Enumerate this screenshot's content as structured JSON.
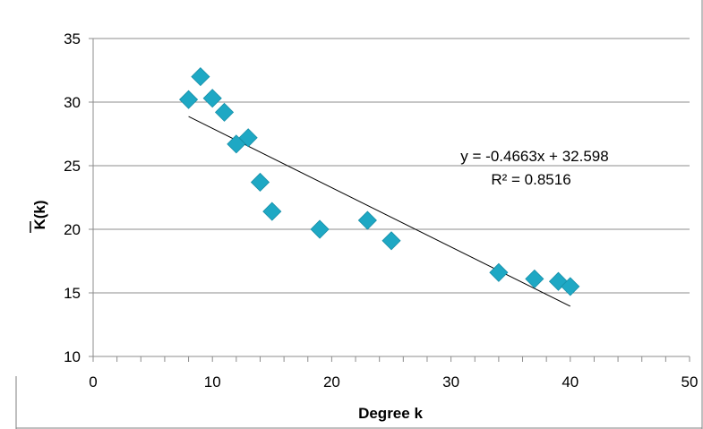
{
  "chart_data": {
    "type": "scatter",
    "xlabel": "Degree k",
    "ylabel": "K(k)",
    "ylabel_overline": true,
    "xlim": [
      0,
      50
    ],
    "ylim": [
      10,
      35
    ],
    "x_ticks": [
      0,
      10,
      20,
      30,
      40,
      50
    ],
    "y_ticks": [
      10,
      15,
      20,
      25,
      30,
      35
    ],
    "grid": "horizontal",
    "legend": "none",
    "marker": "diamond",
    "marker_color": "#1ea8c4",
    "series": [
      {
        "x": [
          8,
          9,
          10,
          11,
          12,
          13,
          14,
          15,
          19,
          23,
          25,
          34,
          37,
          39,
          40
        ],
        "y": [
          30.2,
          32.0,
          30.3,
          29.2,
          26.7,
          27.2,
          23.7,
          21.4,
          20.0,
          20.7,
          19.1,
          16.6,
          16.1,
          15.9,
          15.5
        ]
      }
    ],
    "trendline": {
      "slope": -0.4663,
      "intercept": 32.598,
      "x_range": [
        8,
        40
      ],
      "color": "#000000",
      "equation": "y = -0.4663x + 32.598",
      "r_squared": "R² = 0.8516"
    }
  }
}
